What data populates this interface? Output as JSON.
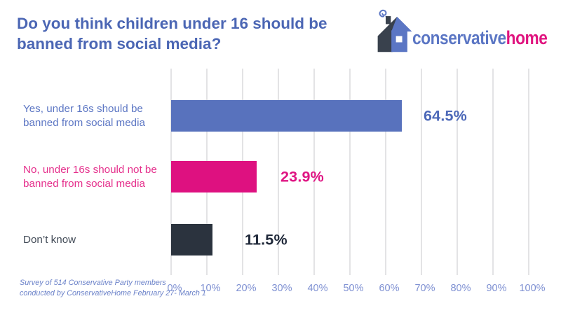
{
  "header": {
    "title": "Do you think children under 16 should be\nbanned from social media?",
    "logo": {
      "conservative": "conservative",
      "home": "home",
      "icon": "house-with-smoke-icon"
    }
  },
  "chart_data": {
    "type": "bar",
    "orientation": "horizontal",
    "title": "Do you think children under 16 should be banned from social media?",
    "categories": [
      "Yes, under 16s should be banned from social media",
      "No, under 16s should not be banned from social media",
      "Don’t know"
    ],
    "category_display": [
      "Yes, under 16s should be\nbanned from social media",
      "No, under 16s should not be\nbanned from social media",
      "Don’t know"
    ],
    "values": [
      64.5,
      23.9,
      11.5
    ],
    "value_labels": [
      "64.5%",
      "23.9%",
      "11.5%"
    ],
    "series_colors": [
      "#5872bd",
      "#de1180",
      "#2b333e"
    ],
    "category_label_colors": [
      "#5d77c4",
      "#e5308c",
      "#434c58"
    ],
    "value_label_colors": [
      "#4c68b8",
      "#df1583",
      "#20293a"
    ],
    "xlim": [
      0,
      100
    ],
    "x_tick_labels": [
      "0%",
      "10%",
      "20%",
      "30%",
      "40%",
      "50%",
      "60%",
      "70%",
      "80%",
      "90%",
      "100%"
    ],
    "grid": true,
    "legend": false
  },
  "footnote": {
    "text": "Survey of 514 Conservative Party members\nconducted by ConservativeHome February 27- March 1"
  },
  "colors": {
    "title": "#4b66b4",
    "axis_label": "#7e90d2",
    "gridline": "#e3e3e5",
    "footnote": "#6b82c9",
    "logo_blue": "#5b76c4",
    "logo_pink": "#e0147f",
    "logo_dark": "#39414d",
    "background": "#ffffff"
  }
}
